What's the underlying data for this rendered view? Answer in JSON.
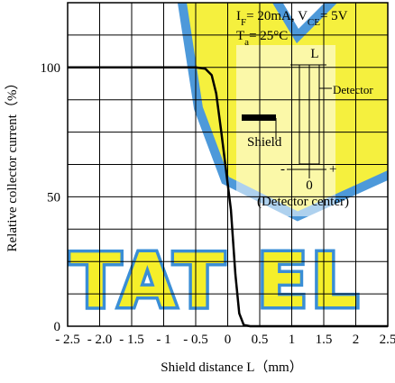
{
  "chart_data": {
    "type": "line",
    "xlabel": "Shield distance L（mm）",
    "ylabel": "Relative collector current（%）",
    "x": [
      -2.5,
      -0.5,
      -0.35,
      -0.25,
      -0.18,
      -0.1,
      0,
      0.05,
      0.12,
      0.18,
      0.25,
      0.35,
      2.5
    ],
    "series": [
      {
        "color": "#000000",
        "values": [
          100,
          100,
          99.5,
          97,
          90,
          75,
          55,
          45,
          20,
          5,
          0.5,
          0,
          0
        ]
      }
    ],
    "xlim": [
      -2.5,
      2.5
    ],
    "xticks": [
      {
        "value": -2.5,
        "label": "- 2.5"
      },
      {
        "value": -2,
        "label": "- 2.0"
      },
      {
        "value": -1.5,
        "label": "- 1.5"
      },
      {
        "value": -1,
        "label": "- 1"
      },
      {
        "value": -0.5,
        "label": "- 0.5"
      },
      0,
      0.5,
      1,
      1.5,
      2,
      2.5
    ],
    "ylim": [
      0,
      125
    ],
    "yticks": [
      0,
      50,
      100
    ],
    "ygrid": [
      12.5,
      25,
      37.5,
      62.5,
      75,
      87.5,
      112.5
    ],
    "grid": true,
    "conditions": [
      [
        "I",
        "F",
        "= 20mA, V",
        "CE",
        "= 5V"
      ],
      [
        "T",
        "a",
        "= 25°C"
      ]
    ],
    "inset": {
      "gap": "L",
      "detector": "Detector",
      "shield": "Shield",
      "origin": "0",
      "origin_note": "(Detector center)",
      "minus": "-",
      "plus": "+"
    },
    "watermark": "TAT EL"
  }
}
